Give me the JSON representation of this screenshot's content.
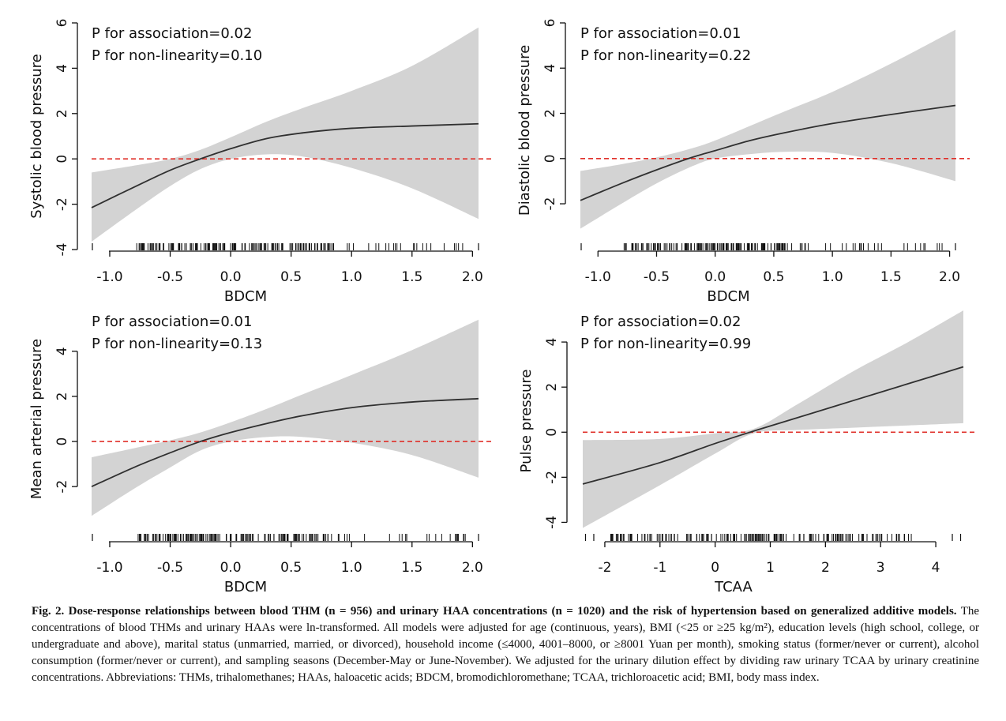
{
  "chart_data": [
    {
      "type": "line",
      "xlabel": "BDCM",
      "ylabel": "Systolic blood pressure",
      "annotations": [
        "P for association=0.02",
        "P for non-linearity=0.10"
      ],
      "xlim": [
        -1.15,
        2.05
      ],
      "ylim": [
        -4,
        6
      ],
      "xticks": [
        -1.0,
        -0.5,
        0.0,
        0.5,
        1.0,
        1.5,
        2.0
      ],
      "xticklabels": [
        "-1.0",
        "-0.5",
        "0.0",
        "0.5",
        "1.0",
        "1.5",
        "2.0"
      ],
      "yticks": [
        -4,
        -2,
        0,
        2,
        4,
        6
      ],
      "yticklabels": [
        "-4",
        "-2",
        "0",
        "2",
        "4",
        "6"
      ],
      "reference_line": 0,
      "x": [
        -1.15,
        -0.8,
        -0.5,
        -0.25,
        0.0,
        0.3,
        0.6,
        1.0,
        1.5,
        2.05
      ],
      "y": [
        -2.15,
        -1.25,
        -0.5,
        0.0,
        0.45,
        0.9,
        1.15,
        1.35,
        1.45,
        1.55
      ],
      "lower": [
        -3.65,
        -2.3,
        -1.2,
        -0.45,
        0.0,
        0.2,
        0.1,
        -0.4,
        -1.3,
        -2.65
      ],
      "upper": [
        -0.6,
        -0.3,
        0.0,
        0.4,
        0.95,
        1.65,
        2.25,
        3.0,
        4.1,
        5.8
      ]
    },
    {
      "type": "line",
      "xlabel": "BDCM",
      "ylabel": "Diastolic blood pressure",
      "annotations": [
        "P for association=0.01",
        "P for non-linearity=0.22"
      ],
      "xlim": [
        -1.15,
        2.05
      ],
      "ylim": [
        -3.5,
        6
      ],
      "xticks": [
        -1.0,
        -0.5,
        0.0,
        0.5,
        1.0,
        1.5,
        2.0
      ],
      "xticklabels": [
        "-1.0",
        "-0.5",
        "0.0",
        "0.5",
        "1.0",
        "1.5",
        "2.0"
      ],
      "yticks": [
        -2,
        0,
        2,
        4,
        6
      ],
      "yticklabels": [
        "-2",
        "0",
        "2",
        "4",
        "6"
      ],
      "reference_line": 0,
      "x": [
        -1.15,
        -0.8,
        -0.5,
        -0.2,
        0.0,
        0.3,
        0.6,
        1.0,
        1.5,
        2.05
      ],
      "y": [
        -1.85,
        -1.1,
        -0.5,
        0.05,
        0.35,
        0.8,
        1.15,
        1.55,
        1.95,
        2.35
      ],
      "lower": [
        -3.1,
        -2.0,
        -1.1,
        -0.35,
        0.0,
        0.2,
        0.3,
        0.25,
        -0.2,
        -1.0
      ],
      "upper": [
        -0.55,
        -0.25,
        0.05,
        0.45,
        0.8,
        1.45,
        2.1,
        2.95,
        4.2,
        5.7
      ]
    },
    {
      "type": "line",
      "xlabel": "BDCM",
      "ylabel": "Mean arterial pressure",
      "annotations": [
        "P for association=0.01",
        "P for non-linearity=0.13"
      ],
      "xlim": [
        -1.15,
        2.05
      ],
      "ylim": [
        -3.5,
        5.5
      ],
      "xticks": [
        -1.0,
        -0.5,
        0.0,
        0.5,
        1.0,
        1.5,
        2.0
      ],
      "xticklabels": [
        "-1.0",
        "-0.5",
        "0.0",
        "0.5",
        "1.0",
        "1.5",
        "2.0"
      ],
      "yticks": [
        -2,
        0,
        2,
        4
      ],
      "yticklabels": [
        "-2",
        "0",
        "2",
        "4"
      ],
      "reference_line": 0,
      "x": [
        -1.15,
        -0.8,
        -0.5,
        -0.25,
        0.0,
        0.3,
        0.6,
        1.0,
        1.5,
        2.05
      ],
      "y": [
        -2.0,
        -1.15,
        -0.5,
        0.0,
        0.4,
        0.8,
        1.15,
        1.5,
        1.75,
        1.9
      ],
      "lower": [
        -3.3,
        -2.1,
        -1.15,
        -0.4,
        0.0,
        0.2,
        0.2,
        -0.05,
        -0.6,
        -1.6
      ],
      "upper": [
        -0.7,
        -0.3,
        0.05,
        0.4,
        0.85,
        1.45,
        2.1,
        2.95,
        4.05,
        5.4
      ]
    },
    {
      "type": "line",
      "xlabel": "TCAA",
      "ylabel": "Pulse pressure",
      "annotations": [
        "P for association=0.02",
        "P for non-linearity=0.99"
      ],
      "xlim": [
        -2.4,
        4.5
      ],
      "ylim": [
        -4.3,
        5.3
      ],
      "xticks": [
        -2,
        -1,
        0,
        1,
        2,
        3,
        4
      ],
      "xticklabels": [
        "-2",
        "-1",
        "0",
        "1",
        "2",
        "3",
        "4"
      ],
      "yticks": [
        -4,
        -2,
        0,
        2,
        4
      ],
      "yticklabels": [
        "-4",
        "-2",
        "0",
        "2",
        "4"
      ],
      "reference_line": 0,
      "x": [
        -2.4,
        -1.0,
        0.0,
        0.7,
        1.5,
        2.5,
        3.5,
        4.5
      ],
      "y": [
        -2.3,
        -1.35,
        -0.5,
        0.05,
        0.65,
        1.4,
        2.15,
        2.9
      ],
      "lower": [
        -4.25,
        -2.35,
        -0.95,
        -0.05,
        0.1,
        0.2,
        0.3,
        0.4
      ],
      "upper": [
        -0.35,
        -0.3,
        -0.05,
        0.15,
        1.25,
        2.7,
        4.0,
        5.4
      ]
    }
  ],
  "colors": {
    "band": "#d3d3d3",
    "curve": "#303030",
    "refline": "#e0302a",
    "axis": "#111111"
  },
  "caption": {
    "label": "Fig. 2.",
    "title": "Dose-response relationships between blood THM (n = 956) and urinary HAA concentrations (n = 1020) and the risk of hypertension based on generalized additive models.",
    "body": "The concentrations of blood THMs and urinary HAAs were ln-transformed. All models were adjusted for age (continuous, years), BMI (<25 or ≥25 kg/m²), education levels (high school, college, or undergraduate and above), marital status (unmarried, married, or divorced), household income (≤4000, 4001–8000, or ≥8001 Yuan per month), smoking status (former/never or current), alcohol consumption (former/never or current), and sampling seasons (December-May or June-November). We adjusted for the urinary dilution effect by dividing raw urinary TCAA by urinary creatinine concentrations. Abbreviations: THMs, trihalomethanes; HAAs, haloacetic acids; BDCM, bromodichloromethane; TCAA, trichloroacetic acid; BMI, body mass index."
  }
}
